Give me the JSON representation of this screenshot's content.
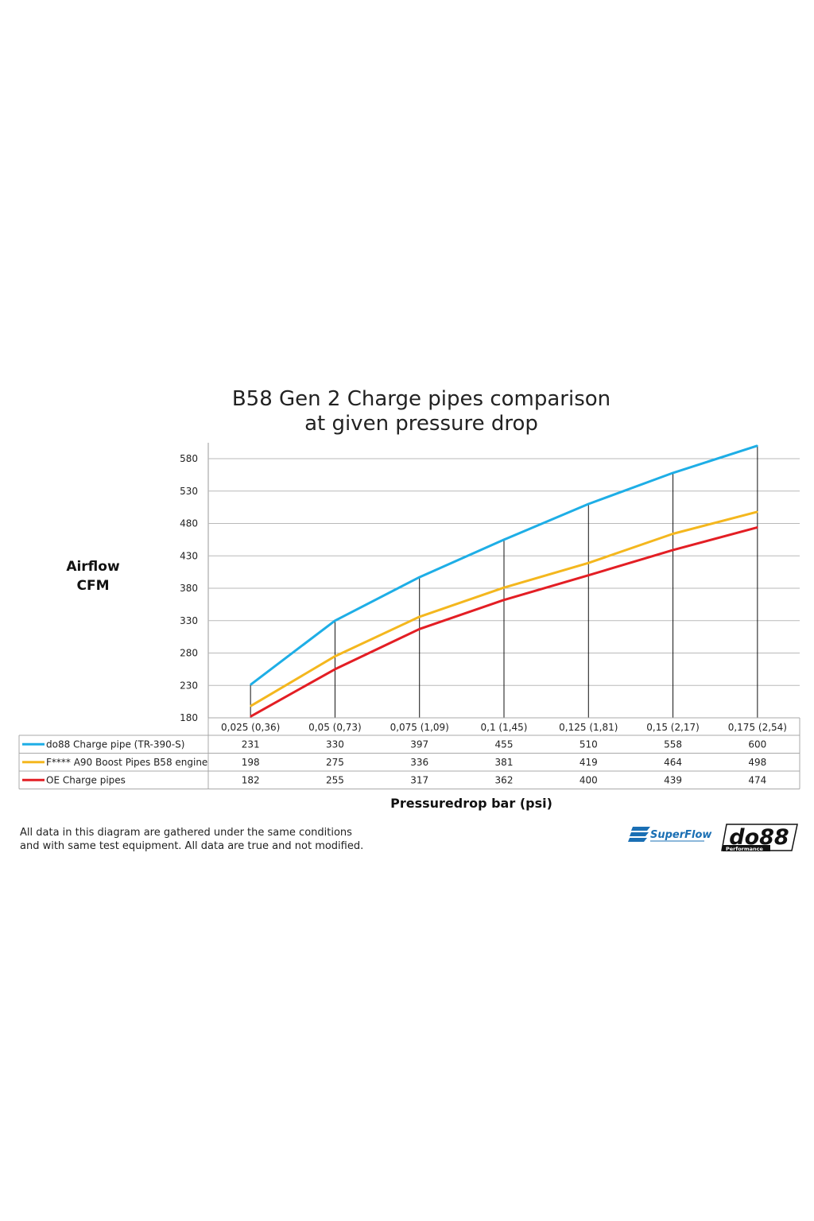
{
  "chart_data": {
    "type": "line",
    "title_line1": "B58 Gen 2 Charge pipes comparison",
    "title_line2": "at given pressure drop",
    "ylabel_line1": "Airflow",
    "ylabel_line2": "CFM",
    "xlabel": "Pressuredrop bar (psi)",
    "ylim": [
      180,
      600
    ],
    "yticks": [
      "180",
      "230",
      "280",
      "330",
      "380",
      "430",
      "480",
      "530",
      "580"
    ],
    "categories": [
      "0,025 (0,36)",
      "0,05 (0,73)",
      "0,075 (1,09)",
      "0,1 (1,45)",
      "0,125 (1,81)",
      "0,15 (2,17)",
      "0,175 (2,54)"
    ],
    "grid": true,
    "legend": "data table below chart",
    "series": [
      {
        "name": "do88 Charge pipe (TR-390-S)",
        "color": "#1eaee6",
        "values": [
          231,
          330,
          397,
          455,
          510,
          558,
          600
        ]
      },
      {
        "name": "F**** A90 Boost Pipes B58 engine",
        "color": "#f4b71e",
        "values": [
          198,
          275,
          336,
          381,
          419,
          464,
          498
        ]
      },
      {
        "name": "OE Charge pipes",
        "color": "#e31e24",
        "values": [
          182,
          255,
          317,
          362,
          400,
          439,
          474
        ]
      }
    ]
  },
  "footnote": {
    "line1": "All data in this diagram are gathered under the same conditions",
    "line2": "and with same test equipment. All data are true and not modified."
  },
  "logos": {
    "superflow": "SuperFlow",
    "do88": "do88",
    "do88_sub": "Performance"
  }
}
